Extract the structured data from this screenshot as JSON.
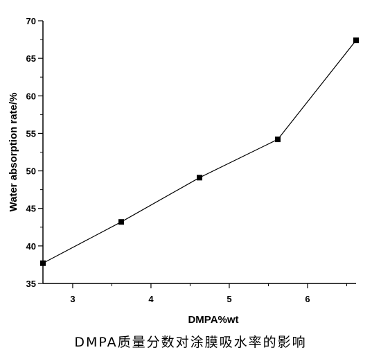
{
  "chart_data": {
    "type": "line",
    "x": [
      2.62,
      3.62,
      4.62,
      5.62,
      6.62
    ],
    "y": [
      37.7,
      43.2,
      49.1,
      54.2,
      67.4
    ],
    "xlabel": "DMPA%wt",
    "ylabel": "Water absorption rate/%",
    "xlim": [
      2.62,
      6.62
    ],
    "ylim": [
      35,
      70
    ],
    "xticks": [
      3,
      4,
      5,
      6
    ],
    "yticks": [
      35,
      40,
      45,
      50,
      55,
      60,
      65,
      70
    ],
    "marker": "square",
    "grid": false,
    "line_color": "#000000",
    "caption": "DMPA质量分数对涂膜吸水率的影响"
  }
}
